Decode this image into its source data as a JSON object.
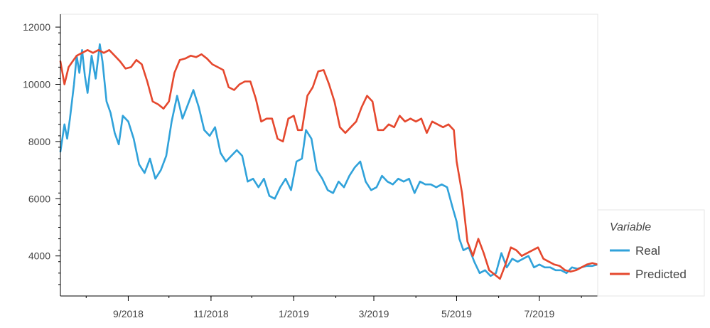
{
  "chart_data": {
    "type": "line",
    "title": "",
    "xlabel": "",
    "ylabel": "",
    "xlim": [
      "2018-07-13",
      "2019-08-13"
    ],
    "ylim": [
      2600,
      12450
    ],
    "x_ticks": [
      {
        "date": "2018-09-01",
        "label": "9/2018"
      },
      {
        "date": "2018-11-01",
        "label": "11/2018"
      },
      {
        "date": "2019-01-01",
        "label": "1/2019"
      },
      {
        "date": "2019-03-01",
        "label": "3/2019"
      },
      {
        "date": "2019-05-01",
        "label": "5/2019"
      },
      {
        "date": "2019-07-01",
        "label": "7/2019"
      }
    ],
    "y_ticks": [
      4000,
      6000,
      8000,
      10000,
      12000
    ],
    "grid": false,
    "legend": {
      "title": "Variable",
      "placement": "right-bottom"
    },
    "series": [
      {
        "name": "Real",
        "color": "#30a2da",
        "points": [
          [
            "2018-07-13",
            7650
          ],
          [
            "2018-07-16",
            8600
          ],
          [
            "2018-07-18",
            8100
          ],
          [
            "2018-07-20",
            8800
          ],
          [
            "2018-07-23",
            10000
          ],
          [
            "2018-07-25",
            11000
          ],
          [
            "2018-07-27",
            10400
          ],
          [
            "2018-07-29",
            11200
          ],
          [
            "2018-07-31",
            10300
          ],
          [
            "2018-08-02",
            9700
          ],
          [
            "2018-08-05",
            11000
          ],
          [
            "2018-08-08",
            10200
          ],
          [
            "2018-08-11",
            11400
          ],
          [
            "2018-08-13",
            10800
          ],
          [
            "2018-08-16",
            9400
          ],
          [
            "2018-08-19",
            9000
          ],
          [
            "2018-08-22",
            8300
          ],
          [
            "2018-08-25",
            7900
          ],
          [
            "2018-08-28",
            8900
          ],
          [
            "2018-09-01",
            8700
          ],
          [
            "2018-09-05",
            8100
          ],
          [
            "2018-09-09",
            7200
          ],
          [
            "2018-09-13",
            6900
          ],
          [
            "2018-09-17",
            7400
          ],
          [
            "2018-09-21",
            6700
          ],
          [
            "2018-09-25",
            7000
          ],
          [
            "2018-09-29",
            7500
          ],
          [
            "2018-10-03",
            8700
          ],
          [
            "2018-10-07",
            9600
          ],
          [
            "2018-10-11",
            8800
          ],
          [
            "2018-10-15",
            9300
          ],
          [
            "2018-10-19",
            9800
          ],
          [
            "2018-10-23",
            9200
          ],
          [
            "2018-10-27",
            8400
          ],
          [
            "2018-10-31",
            8200
          ],
          [
            "2018-11-04",
            8500
          ],
          [
            "2018-11-08",
            7600
          ],
          [
            "2018-11-12",
            7300
          ],
          [
            "2018-11-16",
            7500
          ],
          [
            "2018-11-20",
            7700
          ],
          [
            "2018-11-24",
            7500
          ],
          [
            "2018-11-28",
            6600
          ],
          [
            "2018-12-02",
            6700
          ],
          [
            "2018-12-06",
            6400
          ],
          [
            "2018-12-10",
            6700
          ],
          [
            "2018-12-14",
            6100
          ],
          [
            "2018-12-18",
            6000
          ],
          [
            "2018-12-22",
            6400
          ],
          [
            "2018-12-26",
            6700
          ],
          [
            "2018-12-30",
            6300
          ],
          [
            "2019-01-03",
            7300
          ],
          [
            "2019-01-07",
            7400
          ],
          [
            "2019-01-10",
            8400
          ],
          [
            "2019-01-14",
            8100
          ],
          [
            "2019-01-18",
            7000
          ],
          [
            "2019-01-22",
            6700
          ],
          [
            "2019-01-26",
            6300
          ],
          [
            "2019-01-30",
            6200
          ],
          [
            "2019-02-03",
            6600
          ],
          [
            "2019-02-07",
            6400
          ],
          [
            "2019-02-11",
            6800
          ],
          [
            "2019-02-15",
            7100
          ],
          [
            "2019-02-19",
            7300
          ],
          [
            "2019-02-23",
            6600
          ],
          [
            "2019-02-27",
            6300
          ],
          [
            "2019-03-03",
            6400
          ],
          [
            "2019-03-07",
            6800
          ],
          [
            "2019-03-11",
            6600
          ],
          [
            "2019-03-15",
            6500
          ],
          [
            "2019-03-19",
            6700
          ],
          [
            "2019-03-23",
            6600
          ],
          [
            "2019-03-27",
            6700
          ],
          [
            "2019-03-31",
            6200
          ],
          [
            "2019-04-04",
            6600
          ],
          [
            "2019-04-08",
            6500
          ],
          [
            "2019-04-12",
            6500
          ],
          [
            "2019-04-16",
            6400
          ],
          [
            "2019-04-20",
            6500
          ],
          [
            "2019-04-24",
            6400
          ],
          [
            "2019-04-28",
            5700
          ],
          [
            "2019-05-01",
            5200
          ],
          [
            "2019-05-03",
            4600
          ],
          [
            "2019-05-06",
            4200
          ],
          [
            "2019-05-10",
            4300
          ],
          [
            "2019-05-14",
            3800
          ],
          [
            "2019-05-18",
            3400
          ],
          [
            "2019-05-22",
            3500
          ],
          [
            "2019-05-26",
            3300
          ],
          [
            "2019-05-30",
            3400
          ],
          [
            "2019-06-03",
            4100
          ],
          [
            "2019-06-07",
            3600
          ],
          [
            "2019-06-11",
            3900
          ],
          [
            "2019-06-15",
            3800
          ],
          [
            "2019-06-19",
            3900
          ],
          [
            "2019-06-23",
            4000
          ],
          [
            "2019-06-27",
            3600
          ],
          [
            "2019-07-01",
            3700
          ],
          [
            "2019-07-05",
            3600
          ],
          [
            "2019-07-09",
            3600
          ],
          [
            "2019-07-13",
            3500
          ],
          [
            "2019-07-17",
            3500
          ],
          [
            "2019-07-21",
            3400
          ],
          [
            "2019-07-25",
            3600
          ],
          [
            "2019-07-29",
            3550
          ],
          [
            "2019-08-01",
            3600
          ],
          [
            "2019-08-05",
            3650
          ],
          [
            "2019-08-09",
            3650
          ],
          [
            "2019-08-13",
            3700
          ]
        ]
      },
      {
        "name": "Predicted",
        "color": "#e5482e",
        "points": [
          [
            "2018-07-13",
            10800
          ],
          [
            "2018-07-16",
            10000
          ],
          [
            "2018-07-19",
            10600
          ],
          [
            "2018-07-22",
            10800
          ],
          [
            "2018-07-25",
            11000
          ],
          [
            "2018-07-29",
            11100
          ],
          [
            "2018-08-02",
            11200
          ],
          [
            "2018-08-06",
            11100
          ],
          [
            "2018-08-10",
            11200
          ],
          [
            "2018-08-14",
            11100
          ],
          [
            "2018-08-18",
            11200
          ],
          [
            "2018-08-22",
            11000
          ],
          [
            "2018-08-26",
            10800
          ],
          [
            "2018-08-30",
            10550
          ],
          [
            "2018-09-03",
            10600
          ],
          [
            "2018-09-07",
            10850
          ],
          [
            "2018-09-11",
            10700
          ],
          [
            "2018-09-15",
            10100
          ],
          [
            "2018-09-19",
            9400
          ],
          [
            "2018-09-23",
            9300
          ],
          [
            "2018-09-27",
            9150
          ],
          [
            "2018-10-01",
            9400
          ],
          [
            "2018-10-05",
            10400
          ],
          [
            "2018-10-09",
            10850
          ],
          [
            "2018-10-13",
            10900
          ],
          [
            "2018-10-17",
            11000
          ],
          [
            "2018-10-21",
            10950
          ],
          [
            "2018-10-25",
            11050
          ],
          [
            "2018-10-29",
            10900
          ],
          [
            "2018-11-02",
            10700
          ],
          [
            "2018-11-06",
            10600
          ],
          [
            "2018-11-10",
            10500
          ],
          [
            "2018-11-14",
            9900
          ],
          [
            "2018-11-18",
            9800
          ],
          [
            "2018-11-22",
            10000
          ],
          [
            "2018-11-26",
            10100
          ],
          [
            "2018-11-30",
            10100
          ],
          [
            "2018-12-04",
            9500
          ],
          [
            "2018-12-08",
            8700
          ],
          [
            "2018-12-12",
            8800
          ],
          [
            "2018-12-16",
            8800
          ],
          [
            "2018-12-20",
            8100
          ],
          [
            "2018-12-24",
            8000
          ],
          [
            "2018-12-28",
            8800
          ],
          [
            "2019-01-01",
            8900
          ],
          [
            "2019-01-04",
            8400
          ],
          [
            "2019-01-07",
            8400
          ],
          [
            "2019-01-11",
            9600
          ],
          [
            "2019-01-15",
            9900
          ],
          [
            "2019-01-19",
            10450
          ],
          [
            "2019-01-23",
            10500
          ],
          [
            "2019-01-27",
            10000
          ],
          [
            "2019-01-31",
            9400
          ],
          [
            "2019-02-04",
            8500
          ],
          [
            "2019-02-08",
            8300
          ],
          [
            "2019-02-12",
            8500
          ],
          [
            "2019-02-16",
            8700
          ],
          [
            "2019-02-20",
            9200
          ],
          [
            "2019-02-24",
            9600
          ],
          [
            "2019-02-28",
            9400
          ],
          [
            "2019-03-04",
            8400
          ],
          [
            "2019-03-08",
            8400
          ],
          [
            "2019-03-12",
            8600
          ],
          [
            "2019-03-16",
            8500
          ],
          [
            "2019-03-20",
            8900
          ],
          [
            "2019-03-24",
            8700
          ],
          [
            "2019-03-28",
            8800
          ],
          [
            "2019-04-01",
            8700
          ],
          [
            "2019-04-05",
            8800
          ],
          [
            "2019-04-09",
            8300
          ],
          [
            "2019-04-13",
            8700
          ],
          [
            "2019-04-17",
            8600
          ],
          [
            "2019-04-21",
            8500
          ],
          [
            "2019-04-25",
            8600
          ],
          [
            "2019-04-29",
            8400
          ],
          [
            "2019-05-01",
            7300
          ],
          [
            "2019-05-05",
            6200
          ],
          [
            "2019-05-09",
            4500
          ],
          [
            "2019-05-13",
            4000
          ],
          [
            "2019-05-17",
            4600
          ],
          [
            "2019-05-21",
            4100
          ],
          [
            "2019-05-25",
            3500
          ],
          [
            "2019-05-29",
            3350
          ],
          [
            "2019-06-02",
            3200
          ],
          [
            "2019-06-06",
            3700
          ],
          [
            "2019-06-10",
            4300
          ],
          [
            "2019-06-14",
            4200
          ],
          [
            "2019-06-18",
            4000
          ],
          [
            "2019-06-22",
            4100
          ],
          [
            "2019-06-26",
            4200
          ],
          [
            "2019-06-30",
            4300
          ],
          [
            "2019-07-04",
            3900
          ],
          [
            "2019-07-08",
            3800
          ],
          [
            "2019-07-12",
            3700
          ],
          [
            "2019-07-16",
            3650
          ],
          [
            "2019-07-20",
            3500
          ],
          [
            "2019-07-24",
            3450
          ],
          [
            "2019-07-28",
            3500
          ],
          [
            "2019-08-01",
            3600
          ],
          [
            "2019-08-05",
            3700
          ],
          [
            "2019-08-09",
            3750
          ],
          [
            "2019-08-13",
            3700
          ]
        ]
      }
    ]
  }
}
